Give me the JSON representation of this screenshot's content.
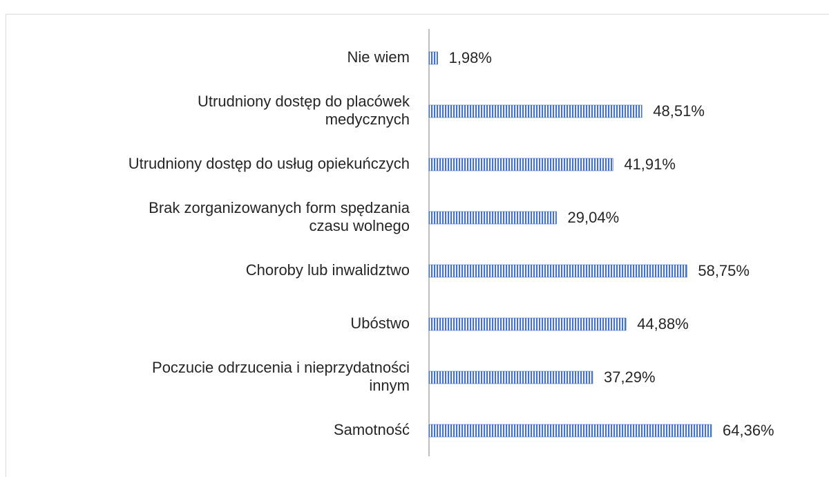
{
  "chart_data": {
    "type": "bar",
    "orientation": "horizontal",
    "categories": [
      "Nie wiem",
      "Utrudniony dostęp do placówek medycznych",
      "Utrudniony dostęp do usług opiekuńczych",
      "Brak zorganizowanych form spędzania czasu wolnego",
      "Choroby lub inwalidztwo",
      "Ubóstwo",
      "Poczucie odrzucenia i nieprzydatności innym",
      "Samotność"
    ],
    "values": [
      1.98,
      48.51,
      41.91,
      29.04,
      58.75,
      44.88,
      37.29,
      64.36
    ],
    "value_labels": [
      "1,98%",
      "48,51%",
      "41,91%",
      "29,04%",
      "58,75%",
      "44,88%",
      "37,29%",
      "64,36%"
    ],
    "color": "#4472c4"
  }
}
